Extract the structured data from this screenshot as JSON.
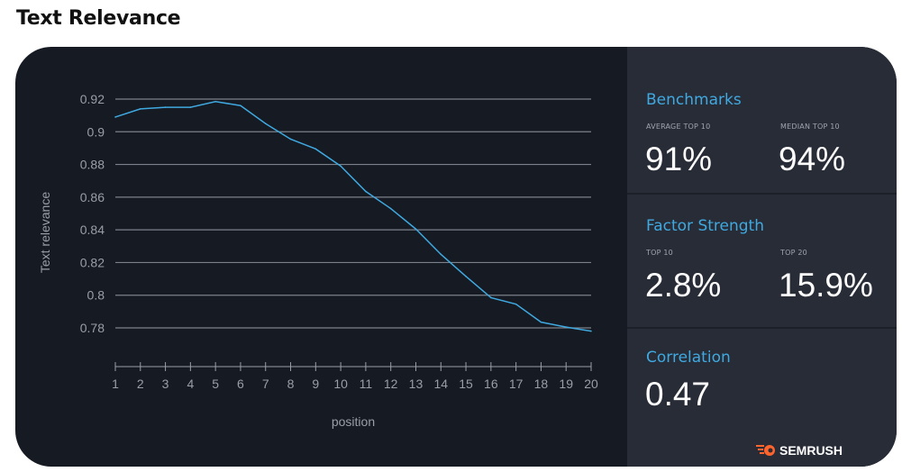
{
  "title": "Text Relevance",
  "chart_data": {
    "type": "line",
    "xlabel": "position",
    "ylabel": "Text relevance",
    "x": [
      1,
      2,
      3,
      4,
      5,
      6,
      7,
      8,
      9,
      10,
      11,
      12,
      13,
      14,
      15,
      16,
      17,
      18,
      19,
      20
    ],
    "values": [
      0.909,
      0.914,
      0.915,
      0.915,
      0.9185,
      0.916,
      0.905,
      0.8955,
      0.8895,
      0.879,
      0.8635,
      0.853,
      0.8405,
      0.825,
      0.8115,
      0.7985,
      0.7945,
      0.7835,
      0.7805,
      0.778
    ],
    "yticks": [
      "0.92",
      "0.9",
      "0.88",
      "0.86",
      "0.84",
      "0.82",
      "0.8",
      "0.78"
    ],
    "ytick_values": [
      0.92,
      0.9,
      0.88,
      0.86,
      0.84,
      0.82,
      0.8,
      0.78
    ],
    "xticks": [
      "1",
      "2",
      "3",
      "4",
      "5",
      "6",
      "7",
      "8",
      "9",
      "10",
      "11",
      "12",
      "13",
      "14",
      "15",
      "16",
      "17",
      "18",
      "19",
      "20"
    ],
    "ylim": [
      0.78,
      0.92
    ],
    "xlim": [
      1,
      20
    ],
    "grid": true,
    "line_color": "#3fa9e0"
  },
  "side": {
    "benchmarks": {
      "title": "Benchmarks",
      "avg_label": "AVERAGE TOP 10",
      "avg_value": "91%",
      "median_label": "MEDIAN TOP 10",
      "median_value": "94%"
    },
    "factor": {
      "title": "Factor Strength",
      "top10_label": "TOP 10",
      "top10_value": "2.8%",
      "top20_label": "TOP 20",
      "top20_value": "15.9%"
    },
    "correlation": {
      "title": "Correlation",
      "value": "0.47"
    },
    "brand": "SEMRUSH"
  },
  "colors": {
    "accent": "#3fa9e0",
    "brand": "#ff642d",
    "panel": "#282c37",
    "chart_bg": "#161a23"
  }
}
